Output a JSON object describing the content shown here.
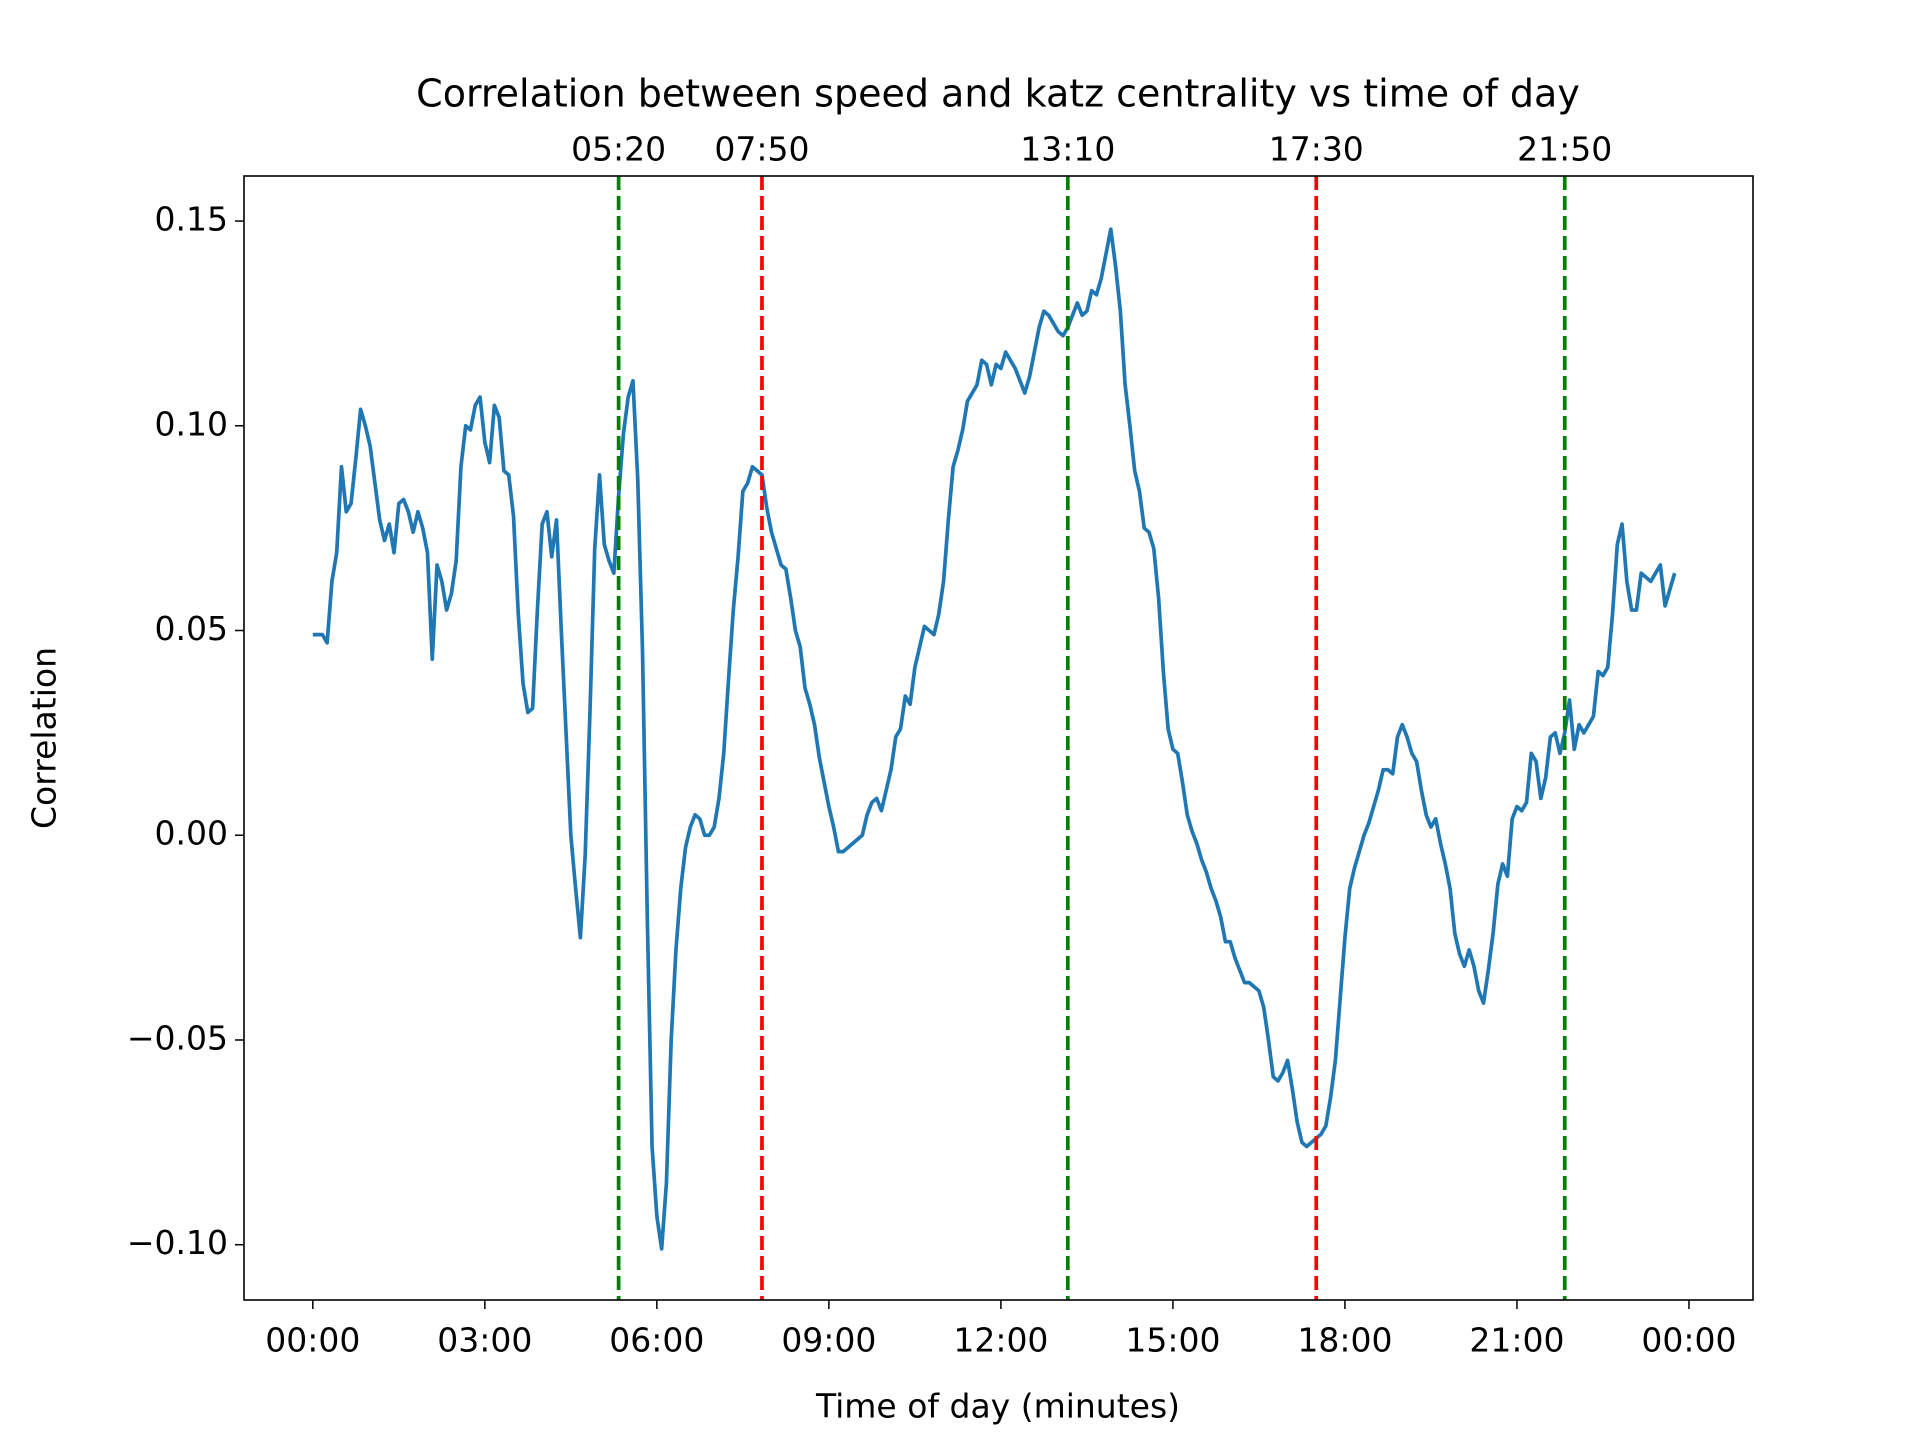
{
  "chart_data": {
    "type": "line",
    "title": "Correlation between speed and katz centrality vs time of day",
    "xlabel": "Time of day (minutes)",
    "ylabel": "Correlation",
    "color": "#1f77b4",
    "xlim": [
      -72,
      1507
    ],
    "ylim": [
      -0.1135,
      0.161
    ],
    "xticks": [
      {
        "value": 0,
        "label": "00:00"
      },
      {
        "value": 180,
        "label": "03:00"
      },
      {
        "value": 360,
        "label": "06:00"
      },
      {
        "value": 540,
        "label": "09:00"
      },
      {
        "value": 720,
        "label": "12:00"
      },
      {
        "value": 900,
        "label": "15:00"
      },
      {
        "value": 1080,
        "label": "18:00"
      },
      {
        "value": 1260,
        "label": "21:00"
      },
      {
        "value": 1440,
        "label": "00:00"
      }
    ],
    "yticks": [
      {
        "value": -0.1,
        "label": "−0.10"
      },
      {
        "value": -0.05,
        "label": "−0.05"
      },
      {
        "value": 0,
        "label": "0.00"
      },
      {
        "value": 0.05,
        "label": "0.05"
      },
      {
        "value": 0.1,
        "label": "0.10"
      },
      {
        "value": 0.15,
        "label": "0.15"
      }
    ],
    "vlines": [
      {
        "x": 320,
        "label": "05:20",
        "color": "green"
      },
      {
        "x": 470,
        "label": "07:50",
        "color": "red"
      },
      {
        "x": 790,
        "label": "13:10",
        "color": "green"
      },
      {
        "x": 1050,
        "label": "17:30",
        "color": "red"
      },
      {
        "x": 1310,
        "label": "21:50",
        "color": "green"
      }
    ],
    "x": [
      0,
      5,
      10,
      15,
      20,
      25,
      30,
      35,
      40,
      45,
      50,
      55,
      60,
      65,
      70,
      75,
      80,
      85,
      90,
      95,
      100,
      105,
      110,
      115,
      120,
      125,
      130,
      135,
      140,
      145,
      150,
      155,
      160,
      165,
      170,
      175,
      180,
      185,
      190,
      195,
      200,
      205,
      210,
      215,
      220,
      225,
      230,
      235,
      240,
      245,
      250,
      255,
      260,
      265,
      270,
      275,
      280,
      285,
      290,
      295,
      300,
      305,
      310,
      315,
      320,
      325,
      330,
      335,
      340,
      345,
      350,
      355,
      360,
      365,
      370,
      375,
      380,
      385,
      390,
      395,
      400,
      405,
      410,
      415,
      420,
      425,
      430,
      435,
      440,
      445,
      450,
      455,
      460,
      465,
      470,
      475,
      480,
      485,
      490,
      495,
      500,
      505,
      510,
      515,
      520,
      525,
      530,
      535,
      540,
      545,
      550,
      555,
      560,
      565,
      570,
      575,
      580,
      585,
      590,
      595,
      600,
      605,
      610,
      615,
      620,
      625,
      630,
      635,
      640,
      645,
      650,
      655,
      660,
      665,
      670,
      675,
      680,
      685,
      690,
      695,
      700,
      705,
      710,
      715,
      720,
      725,
      730,
      735,
      740,
      745,
      750,
      755,
      760,
      765,
      770,
      775,
      780,
      785,
      790,
      795,
      800,
      805,
      810,
      815,
      820,
      825,
      830,
      835,
      840,
      845,
      850,
      855,
      860,
      865,
      870,
      875,
      880,
      885,
      890,
      895,
      900,
      905,
      910,
      915,
      920,
      925,
      930,
      935,
      940,
      945,
      950,
      955,
      960,
      965,
      970,
      975,
      980,
      985,
      990,
      995,
      1000,
      1005,
      1010,
      1015,
      1020,
      1025,
      1030,
      1035,
      1040,
      1045,
      1050,
      1055,
      1060,
      1065,
      1070,
      1075,
      1080,
      1085,
      1090,
      1095,
      1100,
      1105,
      1110,
      1115,
      1120,
      1125,
      1130,
      1135,
      1140,
      1145,
      1150,
      1155,
      1160,
      1165,
      1170,
      1175,
      1180,
      1185,
      1190,
      1195,
      1200,
      1205,
      1210,
      1215,
      1220,
      1225,
      1230,
      1235,
      1240,
      1245,
      1250,
      1255,
      1260,
      1265,
      1270,
      1275,
      1280,
      1285,
      1290,
      1295,
      1300,
      1305,
      1310,
      1315,
      1320,
      1325,
      1330,
      1335,
      1340,
      1345,
      1350,
      1355,
      1360,
      1365,
      1370,
      1375,
      1380,
      1385,
      1390,
      1395,
      1400,
      1405,
      1410,
      1415,
      1420,
      1425
    ],
    "values": [
      0.049,
      0.049,
      0.049,
      0.047,
      0.062,
      0.069,
      0.09,
      0.079,
      0.081,
      0.092,
      0.104,
      0.1,
      0.095,
      0.086,
      0.077,
      0.072,
      0.076,
      0.069,
      0.081,
      0.082,
      0.079,
      0.074,
      0.079,
      0.075,
      0.069,
      0.043,
      0.066,
      0.062,
      0.055,
      0.059,
      0.067,
      0.09,
      0.1,
      0.099,
      0.105,
      0.107,
      0.096,
      0.091,
      0.105,
      0.102,
      0.089,
      0.088,
      0.078,
      0.054,
      0.037,
      0.03,
      0.031,
      0.055,
      0.076,
      0.079,
      0.068,
      0.077,
      0.05,
      0.025,
      0.0,
      -0.013,
      -0.025,
      -0.005,
      0.03,
      0.07,
      0.088,
      0.071,
      0.067,
      0.064,
      0.083,
      0.098,
      0.107,
      0.111,
      0.087,
      0.045,
      -0.02,
      -0.076,
      -0.093,
      -0.101,
      -0.085,
      -0.05,
      -0.028,
      -0.013,
      -0.003,
      0.002,
      0.005,
      0.004,
      0.0,
      0.0,
      0.002,
      0.009,
      0.02,
      0.038,
      0.055,
      0.068,
      0.084,
      0.086,
      0.09,
      0.089,
      0.088,
      0.08,
      0.074,
      0.07,
      0.066,
      0.065,
      0.058,
      0.05,
      0.046,
      0.036,
      0.032,
      0.027,
      0.019,
      0.013,
      0.007,
      0.002,
      -0.004,
      -0.004,
      -0.003,
      -0.002,
      -0.001,
      0.0,
      0.005,
      0.008,
      0.009,
      0.006,
      0.011,
      0.016,
      0.024,
      0.026,
      0.034,
      0.032,
      0.041,
      0.046,
      0.051,
      0.05,
      0.049,
      0.054,
      0.062,
      0.077,
      0.09,
      0.094,
      0.099,
      0.106,
      0.108,
      0.11,
      0.116,
      0.115,
      0.11,
      0.115,
      0.114,
      0.118,
      0.116,
      0.114,
      0.111,
      0.108,
      0.112,
      0.118,
      0.124,
      0.128,
      0.127,
      0.125,
      0.123,
      0.122,
      0.124,
      0.127,
      0.13,
      0.127,
      0.128,
      0.133,
      0.132,
      0.136,
      0.142,
      0.148,
      0.139,
      0.128,
      0.11,
      0.1,
      0.089,
      0.084,
      0.075,
      0.074,
      0.07,
      0.058,
      0.04,
      0.026,
      0.021,
      0.02,
      0.013,
      0.005,
      0.001,
      -0.002,
      -0.006,
      -0.009,
      -0.013,
      -0.016,
      -0.02,
      -0.026,
      -0.026,
      -0.03,
      -0.033,
      -0.036,
      -0.036,
      -0.037,
      -0.038,
      -0.042,
      -0.05,
      -0.059,
      -0.06,
      -0.058,
      -0.055,
      -0.062,
      -0.07,
      -0.075,
      -0.076,
      -0.075,
      -0.074,
      -0.073,
      -0.071,
      -0.064,
      -0.055,
      -0.04,
      -0.025,
      -0.013,
      -0.008,
      -0.004,
      0.0,
      0.003,
      0.007,
      0.011,
      0.016,
      0.016,
      0.015,
      0.024,
      0.027,
      0.024,
      0.02,
      0.018,
      0.011,
      0.005,
      0.002,
      0.004,
      -0.002,
      -0.007,
      -0.013,
      -0.024,
      -0.029,
      -0.032,
      -0.028,
      -0.032,
      -0.038,
      -0.041,
      -0.033,
      -0.024,
      -0.012,
      -0.007,
      -0.01,
      0.004,
      0.007,
      0.006,
      0.008,
      0.02,
      0.018,
      0.009,
      0.014,
      0.024,
      0.025,
      0.02,
      0.025,
      0.033,
      0.021,
      0.027,
      0.025,
      0.027,
      0.029,
      0.04,
      0.039,
      0.041,
      0.054,
      0.071,
      0.076,
      0.062,
      0.055,
      0.055,
      0.064,
      0.063,
      0.062,
      0.064,
      0.066,
      0.056,
      0.06,
      0.064
    ]
  }
}
